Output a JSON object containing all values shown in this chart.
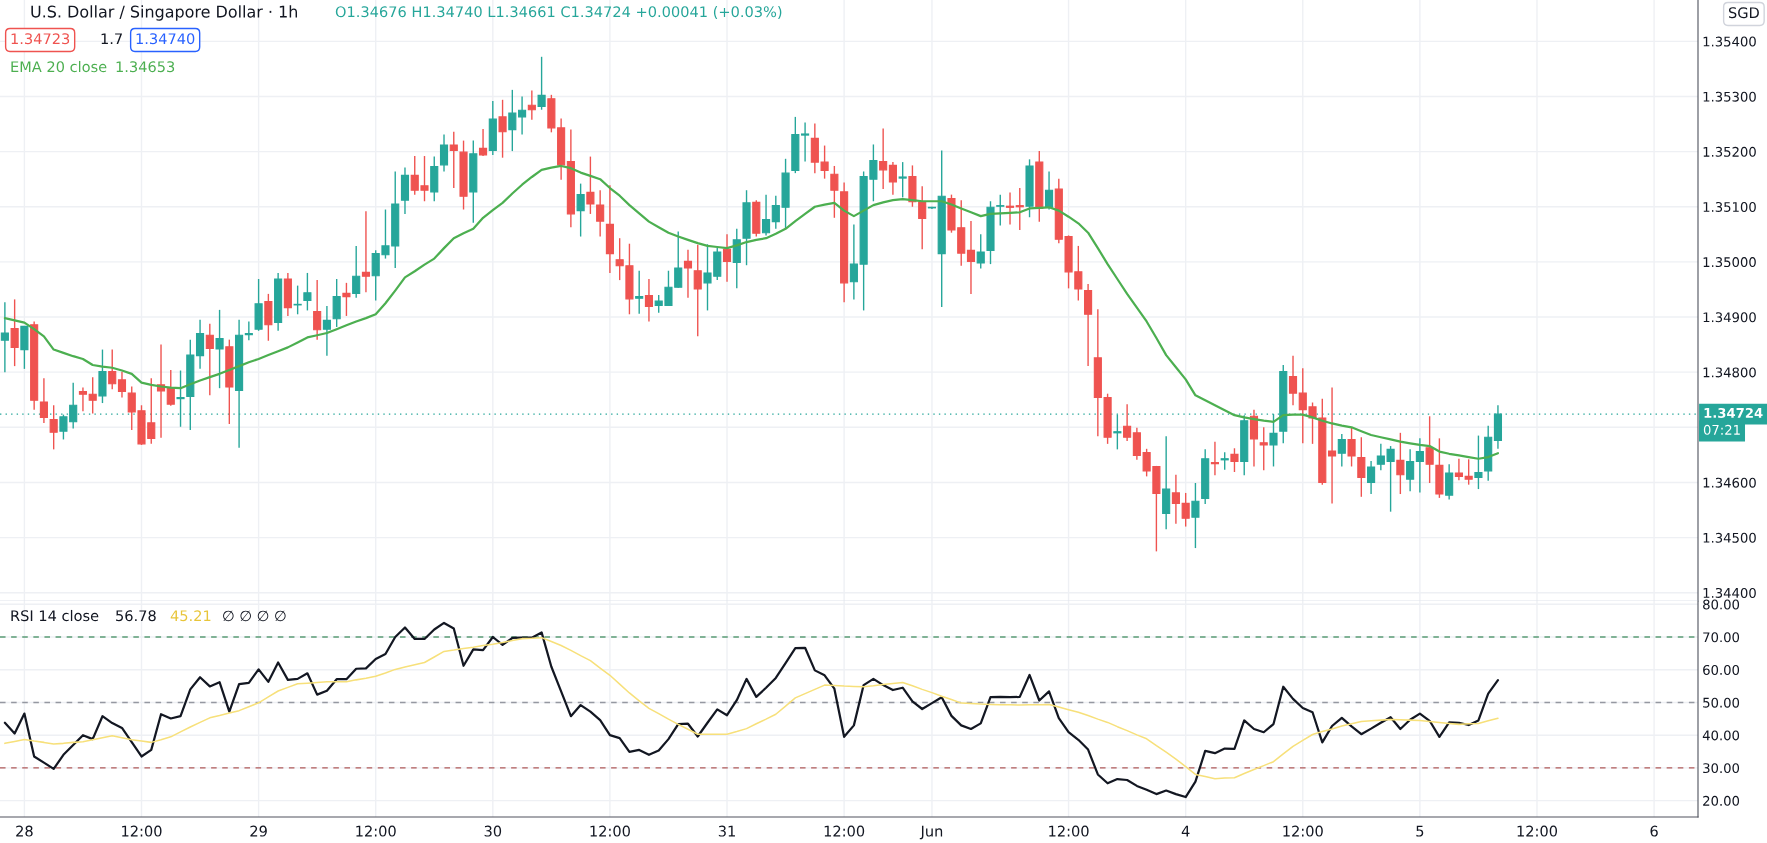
{
  "chart_data": [
    {
      "type": "candlestick",
      "title": "U.S. Dollar / Singapore Dollar · 1h",
      "subtitle": "O1.34676 H1.34740 L1.34661 C1.34724 +0.00041 (+0.03%)",
      "annotations": [
        "1.34723",
        "1.7",
        "1.34740",
        "1.34653",
        "SGD",
        "07:21"
      ],
      "ohlc": [
        [
          1.34858,
          1.34927,
          1.348,
          1.34871
        ],
        [
          1.34879,
          1.34932,
          1.34811,
          1.34845
        ],
        [
          1.34841,
          1.34883,
          1.34806,
          1.34883
        ],
        [
          1.34886,
          1.34892,
          1.34732,
          1.34749
        ],
        [
          1.34746,
          1.34789,
          1.34708,
          1.34718
        ],
        [
          1.34714,
          1.3474,
          1.3466,
          1.34691
        ],
        [
          1.34693,
          1.34723,
          1.34678,
          1.34719
        ],
        [
          1.3471,
          1.34781,
          1.34698,
          1.3474
        ],
        [
          1.34765,
          1.34772,
          1.34729,
          1.3476
        ],
        [
          1.3476,
          1.34791,
          1.34725,
          1.34749
        ],
        [
          1.34757,
          1.34841,
          1.34744,
          1.34801
        ],
        [
          1.34801,
          1.34841,
          1.34769,
          1.34779
        ],
        [
          1.34786,
          1.34801,
          1.34754,
          1.34765
        ],
        [
          1.34762,
          1.34774,
          1.34695,
          1.34728
        ],
        [
          1.3473,
          1.3474,
          1.34668,
          1.3467
        ],
        [
          1.34708,
          1.34789,
          1.3467,
          1.3468
        ],
        [
          1.34777,
          1.3485,
          1.34681,
          1.34766
        ],
        [
          1.34772,
          1.34804,
          1.34739,
          1.34742
        ],
        [
          1.34752,
          1.34803,
          1.34701,
          1.34754
        ],
        [
          1.34756,
          1.34859,
          1.34695,
          1.34831
        ],
        [
          1.3483,
          1.34895,
          1.34806,
          1.3487
        ],
        [
          1.34867,
          1.34888,
          1.34758,
          1.34843
        ],
        [
          1.34842,
          1.34913,
          1.34771,
          1.34861
        ],
        [
          1.34846,
          1.34859,
          1.34706,
          1.34773
        ],
        [
          1.34767,
          1.34895,
          1.34663,
          1.34867
        ],
        [
          1.34868,
          1.34892,
          1.34858,
          1.3487
        ],
        [
          1.34878,
          1.34969,
          1.34875,
          1.34924
        ],
        [
          1.34928,
          1.34942,
          1.34857,
          1.34886
        ],
        [
          1.3489,
          1.3498,
          1.34875,
          1.34969
        ],
        [
          1.34969,
          1.3498,
          1.34902,
          1.34917
        ],
        [
          1.34922,
          1.34957,
          1.34905,
          1.34923
        ],
        [
          1.3493,
          1.3498,
          1.34912,
          1.34944
        ],
        [
          1.3491,
          1.34967,
          1.34859,
          1.34877
        ],
        [
          1.34878,
          1.3492,
          1.3483,
          1.34894
        ],
        [
          1.34897,
          1.34969,
          1.34882,
          1.34937
        ],
        [
          1.34943,
          1.34962,
          1.34902,
          1.34937
        ],
        [
          1.34943,
          1.35029,
          1.34935,
          1.34974
        ],
        [
          1.34981,
          1.35092,
          1.34945,
          1.34974
        ],
        [
          1.34975,
          1.35021,
          1.3493,
          1.35015
        ],
        [
          1.35013,
          1.35095,
          1.35006,
          1.35029
        ],
        [
          1.35029,
          1.35164,
          1.34989,
          1.35105
        ],
        [
          1.35112,
          1.35171,
          1.35087,
          1.35157
        ],
        [
          1.35157,
          1.35192,
          1.35122,
          1.3513
        ],
        [
          1.35138,
          1.35192,
          1.3511,
          1.3513
        ],
        [
          1.35127,
          1.35191,
          1.3511,
          1.35173
        ],
        [
          1.35176,
          1.35231,
          1.35164,
          1.35212
        ],
        [
          1.35212,
          1.35236,
          1.35134,
          1.35202
        ],
        [
          1.35199,
          1.3522,
          1.35095,
          1.35119
        ],
        [
          1.35127,
          1.3522,
          1.35071,
          1.35196
        ],
        [
          1.35206,
          1.35241,
          1.35192,
          1.35194
        ],
        [
          1.35202,
          1.35292,
          1.35194,
          1.35259
        ],
        [
          1.35263,
          1.35294,
          1.35189,
          1.35236
        ],
        [
          1.3524,
          1.35312,
          1.35201,
          1.3527
        ],
        [
          1.35263,
          1.353,
          1.35231,
          1.35275
        ],
        [
          1.35284,
          1.35311,
          1.35258,
          1.35276
        ],
        [
          1.35282,
          1.35372,
          1.35276,
          1.35302
        ],
        [
          1.35296,
          1.35303,
          1.35235,
          1.35243
        ],
        [
          1.35243,
          1.3526,
          1.35149,
          1.35176
        ],
        [
          1.35182,
          1.3524,
          1.35063,
          1.35087
        ],
        [
          1.35093,
          1.35142,
          1.35046,
          1.35122
        ],
        [
          1.35126,
          1.35191,
          1.35087,
          1.35105
        ],
        [
          1.35103,
          1.3513,
          1.35046,
          1.35074
        ],
        [
          1.35068,
          1.35139,
          1.3498,
          1.35015
        ],
        [
          1.35004,
          1.35043,
          1.34967,
          1.34993
        ],
        [
          1.34993,
          1.35033,
          1.34905,
          1.34933
        ],
        [
          1.34934,
          1.34984,
          1.34906,
          1.34937
        ],
        [
          1.34939,
          1.34969,
          1.34892,
          1.34919
        ],
        [
          1.34921,
          1.3494,
          1.34908,
          1.34929
        ],
        [
          1.34921,
          1.34984,
          1.34921,
          1.34954
        ],
        [
          1.34954,
          1.35055,
          1.34953,
          1.34989
        ],
        [
          1.35001,
          1.35022,
          1.34935,
          1.34989
        ],
        [
          1.34984,
          1.35031,
          1.34865,
          1.34951
        ],
        [
          1.34962,
          1.35032,
          1.34912,
          1.3498
        ],
        [
          1.34974,
          1.35025,
          1.34967,
          1.35018
        ],
        [
          1.35023,
          1.3505,
          1.34964,
          1.35001
        ],
        [
          1.34999,
          1.3506,
          1.34952,
          1.3504
        ],
        [
          1.35043,
          1.3513,
          1.34994,
          1.35107
        ],
        [
          1.35108,
          1.35112,
          1.35046,
          1.35052
        ],
        [
          1.35053,
          1.35122,
          1.35048,
          1.35077
        ],
        [
          1.35073,
          1.3512,
          1.3506,
          1.35102
        ],
        [
          1.35099,
          1.35187,
          1.35061,
          1.35161
        ],
        [
          1.35166,
          1.35263,
          1.35161,
          1.35231
        ],
        [
          1.3523,
          1.35253,
          1.35182,
          1.35232
        ],
        [
          1.35224,
          1.35251,
          1.35161,
          1.35181
        ],
        [
          1.35181,
          1.35211,
          1.35151,
          1.35166
        ],
        [
          1.35159,
          1.35174,
          1.3508,
          1.3513
        ],
        [
          1.35127,
          1.35144,
          1.34927,
          1.34962
        ],
        [
          1.34964,
          1.35068,
          1.34932,
          1.34996
        ],
        [
          1.34996,
          1.35164,
          1.34912,
          1.35155
        ],
        [
          1.3515,
          1.35213,
          1.3511,
          1.35184
        ],
        [
          1.35182,
          1.35242,
          1.35132,
          1.35167
        ],
        [
          1.35175,
          1.35181,
          1.35122,
          1.35145
        ],
        [
          1.35152,
          1.35181,
          1.35117,
          1.35154
        ],
        [
          1.35155,
          1.35175,
          1.351,
          1.35109
        ],
        [
          1.35109,
          1.35137,
          1.35023,
          1.35079
        ],
        [
          1.35098,
          1.351,
          1.35096,
          1.35099
        ],
        [
          1.35015,
          1.35202,
          1.34918,
          1.35119
        ],
        [
          1.35115,
          1.35122,
          1.35053,
          1.35058
        ],
        [
          1.35062,
          1.35112,
          1.34993,
          1.35016
        ],
        [
          1.35021,
          1.35074,
          1.34942,
          1.35001
        ],
        [
          1.34998,
          1.3505,
          1.34988,
          1.35018
        ],
        [
          1.35021,
          1.3511,
          1.34996,
          1.35099
        ],
        [
          1.35101,
          1.35122,
          1.35066,
          1.35102
        ],
        [
          1.35101,
          1.35126,
          1.35068,
          1.35099
        ],
        [
          1.35102,
          1.35134,
          1.35058,
          1.351
        ],
        [
          1.35101,
          1.35186,
          1.35081,
          1.35174
        ],
        [
          1.35181,
          1.35201,
          1.35073,
          1.35097
        ],
        [
          1.35099,
          1.35164,
          1.35095,
          1.3513
        ],
        [
          1.35132,
          1.35151,
          1.35034,
          1.35041
        ],
        [
          1.35046,
          1.35048,
          1.34952,
          1.34982
        ],
        [
          1.34982,
          1.35029,
          1.3493,
          1.34951
        ],
        [
          1.34948,
          1.3496,
          1.34811,
          1.34905
        ],
        [
          1.34826,
          1.34914,
          1.34684,
          1.34754
        ],
        [
          1.34754,
          1.34761,
          1.3467,
          1.34682
        ],
        [
          1.3469,
          1.34723,
          1.3466,
          1.34692
        ],
        [
          1.34702,
          1.34742,
          1.34675,
          1.34682
        ],
        [
          1.3469,
          1.34699,
          1.34641,
          1.34649
        ],
        [
          1.34654,
          1.34661,
          1.34611,
          1.34621
        ],
        [
          1.34629,
          1.3463,
          1.34475,
          1.3458
        ],
        [
          1.34544,
          1.34684,
          1.34515,
          1.34588
        ],
        [
          1.34581,
          1.34614,
          1.34525,
          1.34562
        ],
        [
          1.34562,
          1.34581,
          1.3452,
          1.34535
        ],
        [
          1.34537,
          1.34599,
          1.34481,
          1.34566
        ],
        [
          1.34571,
          1.3466,
          1.34561,
          1.34643
        ],
        [
          1.34636,
          1.34674,
          1.34613,
          1.34634
        ],
        [
          1.34641,
          1.34655,
          1.34623,
          1.34643
        ],
        [
          1.34651,
          1.34662,
          1.34619,
          1.34638
        ],
        [
          1.34638,
          1.34722,
          1.34613,
          1.34712
        ],
        [
          1.3472,
          1.34732,
          1.34629,
          1.34679
        ],
        [
          1.34672,
          1.347,
          1.34622,
          1.34668
        ],
        [
          1.34668,
          1.34724,
          1.34629,
          1.34689
        ],
        [
          1.34693,
          1.34813,
          1.34671,
          1.34801
        ],
        [
          1.34792,
          1.3483,
          1.3474,
          1.34762
        ],
        [
          1.34762,
          1.34807,
          1.34671,
          1.34732
        ],
        [
          1.34737,
          1.34745,
          1.3467,
          1.34717
        ],
        [
          1.34717,
          1.34752,
          1.34596,
          1.346
        ],
        [
          1.34657,
          1.34772,
          1.34562,
          1.34648
        ],
        [
          1.34653,
          1.34688,
          1.34629,
          1.34678
        ],
        [
          1.34678,
          1.347,
          1.34629,
          1.34648
        ],
        [
          1.34645,
          1.34682,
          1.34574,
          1.34609
        ],
        [
          1.346,
          1.34639,
          1.34579,
          1.34628
        ],
        [
          1.34633,
          1.3467,
          1.34622,
          1.34648
        ],
        [
          1.34638,
          1.34666,
          1.34547,
          1.3466
        ],
        [
          1.3464,
          1.3469,
          1.34579,
          1.34614
        ],
        [
          1.34606,
          1.3466,
          1.34584,
          1.34638
        ],
        [
          1.34638,
          1.3468,
          1.34582,
          1.34656
        ],
        [
          1.34663,
          1.3472,
          1.34599,
          1.34633
        ],
        [
          1.34631,
          1.3468,
          1.34572,
          1.34579
        ],
        [
          1.34577,
          1.34633,
          1.34569,
          1.34617
        ],
        [
          1.34617,
          1.34643,
          1.34604,
          1.34611
        ],
        [
          1.34611,
          1.34642,
          1.34596,
          1.34606
        ],
        [
          1.34609,
          1.34685,
          1.34588,
          1.34618
        ],
        [
          1.34621,
          1.34703,
          1.34603,
          1.34682
        ],
        [
          1.34676,
          1.3474,
          1.34661,
          1.34724
        ],
        null,
        null,
        null,
        null,
        null,
        null,
        null,
        null,
        null,
        null,
        null,
        null,
        null,
        null,
        null,
        null,
        null,
        null,
        null,
        null
      ],
      "colors": [
        "#26a69a",
        "#ef5350",
        "#26a69a",
        "#ef5350",
        "#ef5350",
        "#ef5350",
        "#26a69a",
        "#26a69a",
        "#ef5350",
        "#ef5350",
        "#26a69a",
        "#ef5350",
        "#ef5350",
        "#ef5350",
        "#ef5350",
        "#ef5350",
        "#ef5350",
        "#ef5350",
        "#26a69a",
        "#26a69a",
        "#26a69a",
        "#ef5350",
        "#26a69a",
        "#ef5350",
        "#26a69a",
        "#26a69a",
        "#26a69a",
        "#ef5350",
        "#26a69a",
        "#ef5350",
        "#26a69a",
        "#26a69a",
        "#ef5350",
        "#26a69a",
        "#26a69a",
        "#ef5350",
        "#26a69a",
        "#ef5350",
        "#26a69a",
        "#26a69a",
        "#26a69a",
        "#26a69a",
        "#ef5350",
        "#ef5350",
        "#26a69a",
        "#26a69a",
        "#ef5350",
        "#ef5350",
        "#26a69a",
        "#ef5350",
        "#26a69a",
        "#ef5350",
        "#26a69a",
        "#26a69a",
        "#ef5350",
        "#26a69a",
        "#ef5350",
        "#ef5350",
        "#ef5350",
        "#26a69a",
        "#ef5350",
        "#ef5350",
        "#ef5350",
        "#ef5350",
        "#ef5350",
        "#26a69a",
        "#ef5350",
        "#26a69a",
        "#26a69a",
        "#26a69a",
        "#ef5350",
        "#ef5350",
        "#26a69a",
        "#26a69a",
        "#ef5350",
        "#26a69a",
        "#26a69a",
        "#ef5350",
        "#26a69a",
        "#26a69a",
        "#26a69a",
        "#26a69a",
        "#26a69a",
        "#ef5350",
        "#ef5350",
        "#ef5350",
        "#ef5350",
        "#26a69a",
        "#26a69a",
        "#26a69a",
        "#ef5350",
        "#ef5350",
        "#26a69a",
        "#ef5350",
        "#ef5350",
        "#26a69a",
        "#26a69a",
        "#ef5350",
        "#ef5350",
        "#ef5350",
        "#26a69a",
        "#26a69a",
        "#26a69a",
        "#ef5350",
        "#ef5350",
        "#26a69a",
        "#ef5350",
        "#26a69a",
        "#ef5350",
        "#ef5350",
        "#ef5350",
        "#ef5350",
        "#ef5350",
        "#ef5350",
        "#26a69a",
        "#ef5350",
        "#ef5350",
        "#ef5350",
        "#ef5350",
        "#26a69a",
        "#ef5350",
        "#ef5350",
        "#26a69a",
        "#26a69a",
        "#ef5350",
        "#26a69a",
        "#ef5350",
        "#26a69a",
        "#ef5350",
        "#ef5350",
        "#26a69a",
        "#26a69a",
        "#ef5350",
        "#ef5350",
        "#ef5350",
        "#ef5350",
        "#ef5350",
        "#26a69a",
        "#ef5350",
        "#ef5350",
        "#26a69a",
        "#26a69a",
        "#26a69a",
        "#ef5350",
        "#26a69a",
        "#26a69a",
        "#ef5350",
        "#ef5350",
        "#26a69a",
        "#ef5350",
        "#ef5350",
        "#26a69a",
        "#26a69a",
        "#26a69a",
        null,
        null,
        null,
        null,
        null,
        null,
        null,
        null,
        null,
        null,
        null,
        null,
        null,
        null,
        null,
        null,
        null,
        null,
        null,
        null
      ],
      "series": [
        {
          "name": "EMA 20 close",
          "type": "line",
          "color": "#4caf50",
          "values": [
            1.34898,
            1.34894,
            1.3489,
            1.34878,
            1.34865,
            1.34841,
            1.34835,
            1.34829,
            1.34824,
            1.34813,
            1.3481,
            1.34808,
            1.34803,
            1.34797,
            1.34781,
            1.34777,
            1.34774,
            1.34772,
            1.34771,
            1.34778,
            1.34785,
            1.34791,
            1.34797,
            1.34804,
            1.34811,
            1.34818,
            1.34824,
            1.34831,
            1.34838,
            1.34845,
            1.34854,
            1.34863,
            1.34867,
            1.34871,
            1.34878,
            1.34885,
            1.34892,
            1.34898,
            1.34905,
            1.34925,
            1.34948,
            1.34972,
            1.34983,
            1.34995,
            1.35006,
            1.35025,
            1.35043,
            1.35052,
            1.3506,
            1.3508,
            1.35094,
            1.35107,
            1.35124,
            1.3514,
            1.35154,
            1.35167,
            1.35171,
            1.35174,
            1.3517,
            1.35162,
            1.35156,
            1.3515,
            1.35134,
            1.3512,
            1.35103,
            1.35088,
            1.35073,
            1.35063,
            1.35053,
            1.35046,
            1.3504,
            1.35034,
            1.35029,
            1.35027,
            1.35025,
            1.3503,
            1.35036,
            1.3504,
            1.35043,
            1.35051,
            1.3506,
            1.35074,
            1.35087,
            1.351,
            1.35104,
            1.35107,
            1.35093,
            1.35083,
            1.35093,
            1.35103,
            1.35108,
            1.35112,
            1.35114,
            1.35112,
            1.3511,
            1.3511,
            1.3511,
            1.35104,
            1.35097,
            1.3509,
            1.35083,
            1.35087,
            1.35088,
            1.35089,
            1.3509,
            1.35097,
            1.35098,
            1.35099,
            1.35093,
            1.35082,
            1.3507,
            1.35053,
            1.35025,
            1.34996,
            1.34969,
            1.34942,
            1.34917,
            1.34892,
            1.34862,
            1.34831,
            1.34809,
            1.34787,
            1.34758,
            1.34749,
            1.3474,
            1.34731,
            1.34722,
            1.34718,
            1.34715,
            1.34712,
            1.3471,
            1.34722,
            1.34723,
            1.34723,
            1.34718,
            1.34712,
            1.34707,
            1.34703,
            1.347,
            1.34693,
            1.34686,
            1.34682,
            1.34678,
            1.34674,
            1.34671,
            1.34668,
            1.34666,
            1.34656,
            1.34652,
            1.34649,
            1.34646,
            1.34643,
            1.34646,
            1.34653,
            null,
            null,
            null,
            null,
            null,
            null,
            null,
            null,
            null,
            null,
            null,
            null,
            null,
            null,
            null,
            null,
            null,
            null,
            null,
            null
          ]
        }
      ],
      "ref_lines": [
        {
          "axis": "y",
          "value": 1.34724,
          "label": "1.34724",
          "color": "#26a69a",
          "line_style": "dotted"
        }
      ],
      "ylim": [
        1.34385,
        1.35475
      ],
      "yticks": [
        {
          "value": 1.344,
          "label": "1.34400"
        },
        {
          "value": 1.345,
          "label": "1.34500"
        },
        {
          "value": 1.346,
          "label": "1.34600"
        },
        {
          "value": 1.347,
          "label": null
        },
        {
          "value": 1.348,
          "label": "1.34800"
        },
        {
          "value": 1.349,
          "label": "1.34900"
        },
        {
          "value": 1.35,
          "label": "1.35000"
        },
        {
          "value": 1.351,
          "label": "1.35100"
        },
        {
          "value": 1.352,
          "label": "1.35200"
        },
        {
          "value": 1.353,
          "label": "1.35300"
        },
        {
          "value": 1.354,
          "label": "1.35400"
        }
      ],
      "tick_labels": "y",
      "grid": true
    },
    {
      "type": "line",
      "annotations": [
        "56.78",
        "45.21",
        "∅ ∅ ∅ ∅"
      ],
      "categories": [
        null,
        null,
        "28",
        null,
        null,
        null,
        null,
        null,
        null,
        null,
        null,
        null,
        null,
        null,
        "12:00",
        null,
        null,
        null,
        null,
        null,
        null,
        null,
        null,
        null,
        null,
        null,
        "29",
        null,
        null,
        null,
        null,
        null,
        null,
        null,
        null,
        null,
        null,
        null,
        "12:00",
        null,
        null,
        null,
        null,
        null,
        null,
        null,
        null,
        null,
        null,
        null,
        "30",
        null,
        null,
        null,
        null,
        null,
        null,
        null,
        null,
        null,
        null,
        null,
        "12:00",
        null,
        null,
        null,
        null,
        null,
        null,
        null,
        null,
        null,
        null,
        null,
        "31",
        null,
        null,
        null,
        null,
        null,
        null,
        null,
        null,
        null,
        null,
        null,
        "12:00",
        null,
        null,
        null,
        null,
        null,
        null,
        null,
        null,
        "Jun",
        null,
        null,
        null,
        null,
        null,
        null,
        null,
        null,
        null,
        null,
        null,
        null,
        null,
        "12:00",
        null,
        null,
        null,
        null,
        null,
        null,
        null,
        null,
        null,
        null,
        null,
        "4",
        null,
        null,
        null,
        null,
        null,
        null,
        null,
        null,
        null,
        null,
        null,
        "12:00",
        null,
        null,
        null,
        null,
        null,
        null,
        null,
        null,
        null,
        null,
        null,
        "5",
        null,
        null,
        null,
        null,
        null,
        null,
        null,
        null,
        null,
        null,
        null,
        "12:00",
        null,
        null,
        null,
        null,
        null,
        null,
        null,
        null,
        null,
        null,
        null,
        "6",
        null,
        null,
        null,
        null
      ],
      "series": [
        {
          "name": "RSI 14 close",
          "color": "#131722",
          "values": [
            43.8,
            40.5,
            46.6,
            33.5,
            31.6,
            29.7,
            34.0,
            37.0,
            40.0,
            38.8,
            45.8,
            43.7,
            42.2,
            37.9,
            33.5,
            35.5,
            46.4,
            45.1,
            45.8,
            54.0,
            57.7,
            54.9,
            56.2,
            47.2,
            55.6,
            56.0,
            60.1,
            56.3,
            62.2,
            56.9,
            57.2,
            58.9,
            52.4,
            53.6,
            57.1,
            57.1,
            60.3,
            60.4,
            63.3,
            64.8,
            70.0,
            72.9,
            69.4,
            69.4,
            72.3,
            74.3,
            72.6,
            61.2,
            66.2,
            66.0,
            70.0,
            67.6,
            69.7,
            69.8,
            69.8,
            71.4,
            60.9,
            53.4,
            45.8,
            49.2,
            47.2,
            44.6,
            40.0,
            39.1,
            34.9,
            35.5,
            34.0,
            35.3,
            38.8,
            43.4,
            43.5,
            39.6,
            43.8,
            47.9,
            46.1,
            50.7,
            57.2,
            51.7,
            54.5,
            57.5,
            62.0,
            66.6,
            66.7,
            59.8,
            58.3,
            54.2,
            39.5,
            43.0,
            55.3,
            57.2,
            55.3,
            53.8,
            54.5,
            50.3,
            48.0,
            49.8,
            51.6,
            45.9,
            43.0,
            41.9,
            43.6,
            51.6,
            51.7,
            51.6,
            51.7,
            58.4,
            50.6,
            53.4,
            45.2,
            40.9,
            38.6,
            35.6,
            28.0,
            25.3,
            26.6,
            26.3,
            24.5,
            23.3,
            22.0,
            23.1,
            22.0,
            21.1,
            25.8,
            35.2,
            34.5,
            35.9,
            35.8,
            44.5,
            41.9,
            40.9,
            43.4,
            54.8,
            51.1,
            48.3,
            47.0,
            37.8,
            42.8,
            45.3,
            42.7,
            40.3,
            42.0,
            43.8,
            45.5,
            41.9,
            44.7,
            46.6,
            44.4,
            39.5,
            43.9,
            43.8,
            43.1,
            44.5,
            52.7,
            56.8,
            null,
            null,
            null,
            null,
            null,
            null,
            null,
            null,
            null,
            null,
            null,
            null,
            null,
            null,
            null,
            null,
            null,
            null,
            null,
            null
          ]
        },
        {
          "color": "#f7e07a",
          "values": [
            37.5,
            38.1,
            38.7,
            38.2,
            37.8,
            37.3,
            37.5,
            37.8,
            38.0,
            38.6,
            39.2,
            39.8,
            39.2,
            38.6,
            38.2,
            37.8,
            38.6,
            39.5,
            41.0,
            42.5,
            43.9,
            45.3,
            46.0,
            46.8,
            47.5,
            48.7,
            49.9,
            51.7,
            53.5,
            54.6,
            55.7,
            55.9,
            56.1,
            56.3,
            56.3,
            56.3,
            56.9,
            57.4,
            58.0,
            59.0,
            60.1,
            60.8,
            61.5,
            62.2,
            63.9,
            65.6,
            66.0,
            66.5,
            66.9,
            67.4,
            67.8,
            68.3,
            68.9,
            69.5,
            69.6,
            69.8,
            68.6,
            67.4,
            65.9,
            64.3,
            62.8,
            60.5,
            58.3,
            55.6,
            52.9,
            50.5,
            48.2,
            46.6,
            44.9,
            43.3,
            41.8,
            40.3,
            40.3,
            40.3,
            40.3,
            41.1,
            42.0,
            43.5,
            44.9,
            46.4,
            48.9,
            51.4,
            52.7,
            54.0,
            55.3,
            55.2,
            55.0,
            54.9,
            54.8,
            55.1,
            55.5,
            55.8,
            56.1,
            55.1,
            54.0,
            53.0,
            51.9,
            50.9,
            49.8,
            49.7,
            49.5,
            49.4,
            49.3,
            49.3,
            49.2,
            49.3,
            49.3,
            49.4,
            48.6,
            47.8,
            47.0,
            46.0,
            44.9,
            43.9,
            42.6,
            41.4,
            40.1,
            38.9,
            36.8,
            34.8,
            32.7,
            30.4,
            28.0,
            27.4,
            26.7,
            26.9,
            27.0,
            28.3,
            29.5,
            30.7,
            31.9,
            34.3,
            36.6,
            38.4,
            40.2,
            41.1,
            41.9,
            42.8,
            43.5,
            44.2,
            44.4,
            44.6,
            44.8,
            44.7,
            44.6,
            44.5,
            44.2,
            43.9,
            43.6,
            43.3,
            43.5,
            43.6,
            44.4,
            45.2,
            null,
            null,
            null,
            null,
            null,
            null,
            null,
            null,
            null,
            null,
            null,
            null,
            null,
            null,
            null,
            null,
            null,
            null,
            null,
            null
          ]
        }
      ],
      "ref_lines": [
        {
          "axis": "y",
          "value": 70,
          "color": "#5b9c76",
          "line_style": "dashed"
        },
        {
          "axis": "y",
          "value": 50,
          "color": "#9598a1",
          "line_style": "dashed"
        },
        {
          "axis": "y",
          "value": 30,
          "color": "#b05a5a",
          "line_style": "dashed"
        }
      ],
      "ylim": [
        15,
        81
      ],
      "yticks": [
        {
          "value": 20,
          "label": "20.00"
        },
        {
          "value": 30,
          "label": "30.00"
        },
        {
          "value": 40,
          "label": "40.00"
        },
        {
          "value": 50,
          "label": "50.00"
        },
        {
          "value": 60,
          "label": "60.00"
        },
        {
          "value": 70,
          "label": "70.00"
        },
        {
          "value": 80,
          "label": "80.00"
        }
      ],
      "grid": true
    }
  ]
}
